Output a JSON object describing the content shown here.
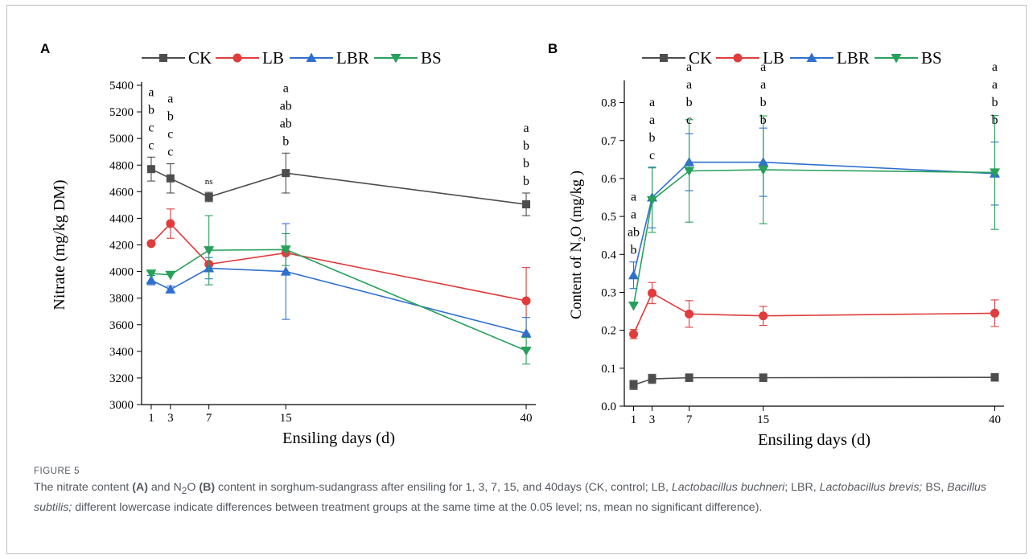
{
  "figure_label": "FIGURE 5",
  "caption_parts": [
    {
      "t": "The nitrate content ",
      "s": "n"
    },
    {
      "t": "(A)",
      "s": "b"
    },
    {
      "t": " and N",
      "s": "n"
    },
    {
      "t": "2",
      "s": "sub"
    },
    {
      "t": "O ",
      "s": "n"
    },
    {
      "t": "(B)",
      "s": "b"
    },
    {
      "t": " content in sorghum-sudangrass after ensiling for 1, 3, 7, 15, and 40days (CK, control; LB, ",
      "s": "n"
    },
    {
      "t": "Lactobacillus buchneri",
      "s": "i"
    },
    {
      "t": "; LBR, ",
      "s": "n"
    },
    {
      "t": "Lactobacillus brevis;",
      "s": "i"
    },
    {
      "t": " BS, ",
      "s": "n"
    },
    {
      "t": "Bacillus subtilis;",
      "s": "i"
    },
    {
      "t": " different lowercase indicate differences between treatment groups at the same time at the 0.05 level; ns, mean no significant difference).",
      "s": "n"
    }
  ],
  "colors": {
    "CK": "#4d4d4d",
    "LB": "#e03c3c",
    "LBR": "#2e6fd0",
    "BS": "#27a05a"
  },
  "chart_data": [
    {
      "panel": "A",
      "type": "line",
      "xlabel": "Ensiling days (d)",
      "ylabel": "Nitrate (mg/kg DM)",
      "x": [
        1,
        3,
        7,
        15,
        40
      ],
      "xlim": [
        0,
        41
      ],
      "ylim": [
        3000,
        5400
      ],
      "yticks": [
        3000,
        3200,
        3400,
        3600,
        3800,
        4000,
        4200,
        4400,
        4600,
        4800,
        5000,
        5200,
        5400
      ],
      "ytick_labels": [
        "3000",
        "3200",
        "3400",
        "3600",
        "3800",
        "4000",
        "4200",
        "4400",
        "4600",
        "4800",
        "5000",
        "5200",
        "5400"
      ],
      "legend": "top",
      "series": [
        {
          "name": "CK",
          "marker": "square",
          "values": [
            4770,
            4700,
            4560,
            4740,
            4505
          ],
          "errors": [
            90,
            110,
            35,
            150,
            85
          ]
        },
        {
          "name": "LB",
          "marker": "circle",
          "values": [
            4210,
            4360,
            4055,
            4140,
            3780
          ],
          "errors": [
            0,
            110,
            0,
            0,
            250
          ]
        },
        {
          "name": "LBR",
          "marker": "triangle-up",
          "values": [
            3935,
            3865,
            4025,
            4000,
            3535
          ],
          "errors": [
            35,
            25,
            80,
            360,
            120
          ]
        },
        {
          "name": "BS",
          "marker": "triangle-down",
          "values": [
            3985,
            3975,
            4160,
            4165,
            3405
          ],
          "errors": [
            0,
            0,
            260,
            120,
            100
          ]
        }
      ],
      "significance": [
        {
          "x": 1,
          "letters": [
            "a",
            "b",
            "c",
            "c"
          ],
          "small": false
        },
        {
          "x": 3,
          "letters": [
            "a",
            "b",
            "c",
            "c"
          ],
          "small": false
        },
        {
          "x": 7,
          "letters": [
            "ns"
          ],
          "small": true
        },
        {
          "x": 15,
          "letters": [
            "a",
            "ab",
            "ab",
            "b"
          ],
          "small": false
        },
        {
          "x": 40,
          "letters": [
            "a",
            "b",
            "b",
            "b"
          ],
          "small": false
        }
      ]
    },
    {
      "panel": "B",
      "type": "line",
      "xlabel": "Ensiling days (d)",
      "ylabel": "Content of N2O (mg/kg )",
      "ylabel_parts": [
        "Content of N",
        "2",
        "O (mg/kg )"
      ],
      "x": [
        1,
        3,
        7,
        15,
        40
      ],
      "xlim": [
        0,
        41
      ],
      "ylim": [
        0,
        0.85
      ],
      "yticks": [
        0,
        0.1,
        0.2,
        0.3,
        0.4,
        0.5,
        0.6,
        0.7,
        0.8
      ],
      "ytick_labels": [
        "0.0",
        "0.1",
        "0.2",
        "0.3",
        "0.4",
        "0.5",
        "0.6",
        "0.7",
        "0.8"
      ],
      "legend": "top",
      "series": [
        {
          "name": "CK",
          "marker": "square",
          "values": [
            0.056,
            0.072,
            0.075,
            0.075,
            0.076
          ],
          "errors": [
            0.012,
            0.012,
            0.01,
            0.01,
            0.01
          ]
        },
        {
          "name": "LB",
          "marker": "circle",
          "values": [
            0.19,
            0.298,
            0.243,
            0.238,
            0.245
          ],
          "errors": [
            0.012,
            0.028,
            0.035,
            0.025,
            0.035
          ]
        },
        {
          "name": "LBR",
          "marker": "triangle-up",
          "values": [
            0.345,
            0.55,
            0.643,
            0.643,
            0.613
          ],
          "errors": [
            0.035,
            0.08,
            0.075,
            0.09,
            0.083
          ]
        },
        {
          "name": "BS",
          "marker": "triangle-down",
          "values": [
            0.265,
            0.543,
            0.62,
            0.623,
            0.616
          ],
          "errors": [
            0,
            0.085,
            0.135,
            0.142,
            0.15
          ]
        }
      ],
      "significance": [
        {
          "x": 1,
          "letters": [
            "a",
            "a",
            "ab",
            "b"
          ],
          "small": false
        },
        {
          "x": 3,
          "letters": [
            "a",
            "a",
            "b",
            "c"
          ],
          "small": false
        },
        {
          "x": 7,
          "letters": [
            "a",
            "a",
            "b",
            "c"
          ],
          "small": false
        },
        {
          "x": 15,
          "letters": [
            "a",
            "a",
            "b",
            "b"
          ],
          "small": false
        },
        {
          "x": 40,
          "letters": [
            "a",
            "a",
            "b",
            "b"
          ],
          "small": false
        }
      ]
    }
  ]
}
